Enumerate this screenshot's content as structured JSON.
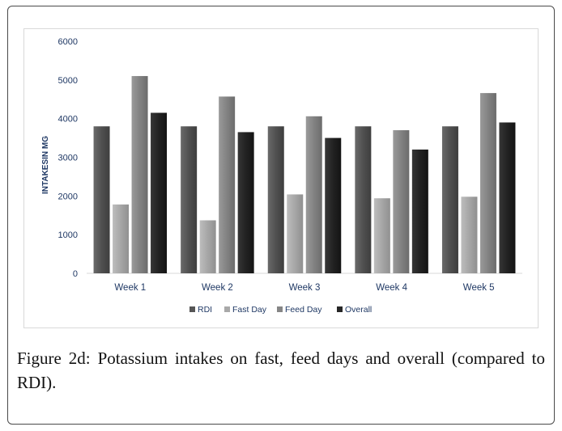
{
  "chart_data": {
    "type": "bar",
    "title": "",
    "xlabel": "",
    "ylabel": "INTAKESIN MG",
    "ylim": [
      0,
      6000
    ],
    "yticks": [
      0,
      1000,
      2000,
      3000,
      4000,
      5000,
      6000
    ],
    "grid": false,
    "legend_position": "bottom",
    "categories": [
      "Week 1",
      "Week 2",
      "Week 3",
      "Week 4",
      "Week 5"
    ],
    "series": [
      {
        "name": "RDI",
        "color": "#565656",
        "values": [
          3800,
          3800,
          3800,
          3800,
          3800
        ]
      },
      {
        "name": "Fast Day",
        "color": "#a9a9a9",
        "values": [
          1780,
          1370,
          2040,
          1940,
          1980
        ]
      },
      {
        "name": "Feed Day",
        "color": "#868686",
        "values": [
          5100,
          4570,
          4060,
          3700,
          4660
        ]
      },
      {
        "name": "Overall",
        "color": "#262626",
        "values": [
          4150,
          3650,
          3500,
          3200,
          3900
        ]
      }
    ]
  },
  "caption": {
    "label": "Figure 2d:",
    "text": " Potassium intakes on fast, feed days and overall (compared to RDI)."
  }
}
